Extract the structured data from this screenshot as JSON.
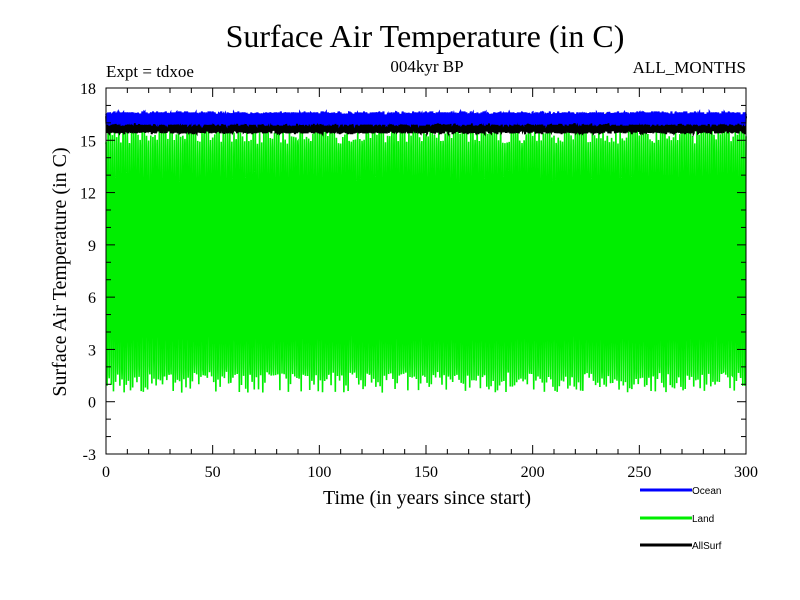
{
  "chart_data": {
    "type": "line",
    "title": "Surface Air Temperature (in C)",
    "subtitle": "004kyr BP",
    "left_label": "Expt = tdxoe",
    "right_label": "ALL_MONTHS",
    "xlabel": "Time (in years since start)",
    "ylabel": "Surface Air Temperature (in C)",
    "xlim": [
      0,
      300
    ],
    "ylim": [
      -3,
      18
    ],
    "x_ticks": [
      "0",
      "50",
      "100",
      "150",
      "200",
      "250",
      "300"
    ],
    "y_ticks": [
      "-3",
      "0",
      "3",
      "6",
      "9",
      "12",
      "15",
      "18"
    ],
    "grid": false,
    "legend_position": "bottom-right",
    "series": [
      {
        "name": "Ocean",
        "color": "#0000ff",
        "mean": 16.2,
        "min": 15.9,
        "max": 16.6,
        "envelope": "narrow-seasonal"
      },
      {
        "name": "Land",
        "color": "#00ee00",
        "mean": 8.3,
        "min": 0.5,
        "max": 16.0,
        "envelope": "monthly-seasonal-cycle"
      },
      {
        "name": "AllSurf",
        "color": "#000000",
        "mean": 15.9,
        "min": 15.4,
        "max": 16.4,
        "envelope": "narrow-seasonal"
      }
    ]
  }
}
